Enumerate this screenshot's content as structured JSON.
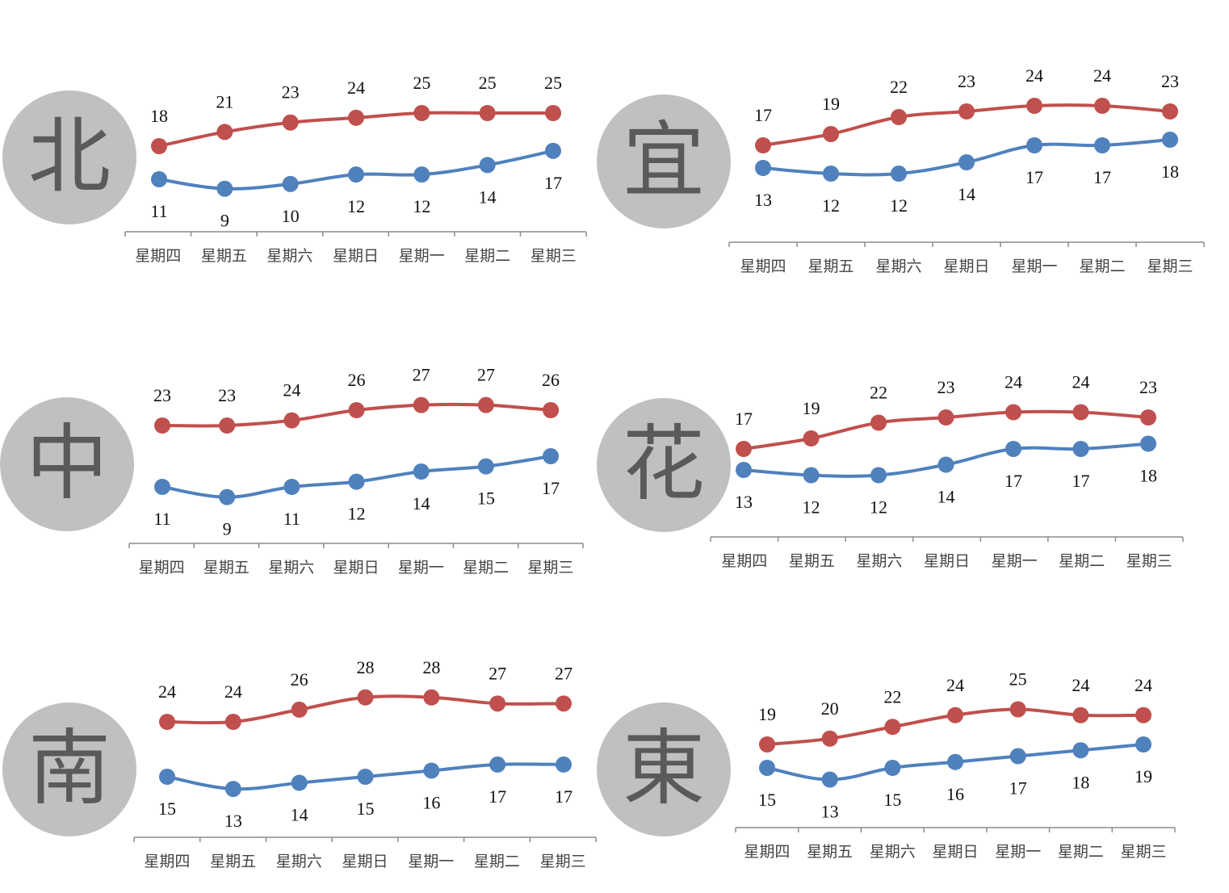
{
  "colors": {
    "high": "#c0504d",
    "low": "#4f81bd",
    "circle": "#c0c0c0",
    "char": "#5a5a5a",
    "axis": "#8c8c8c"
  },
  "chart_data": [
    {
      "type": "line",
      "region": "北",
      "categories": [
        "星期四",
        "星期五",
        "星期六",
        "星期日",
        "星期一",
        "星期二",
        "星期三"
      ],
      "series": [
        {
          "values": [
            18,
            21,
            23,
            24,
            25,
            25,
            25
          ],
          "color": "#c0504d"
        },
        {
          "values": [
            11,
            9,
            10,
            12,
            12,
            14,
            17
          ],
          "color": "#4f81bd"
        }
      ]
    },
    {
      "type": "line",
      "region": "宜",
      "categories": [
        "星期四",
        "星期五",
        "星期六",
        "星期日",
        "星期一",
        "星期二",
        "星期三"
      ],
      "series": [
        {
          "values": [
            17,
            19,
            22,
            23,
            24,
            24,
            23
          ],
          "color": "#c0504d"
        },
        {
          "values": [
            13,
            12,
            12,
            14,
            17,
            17,
            18
          ],
          "color": "#4f81bd"
        }
      ]
    },
    {
      "type": "line",
      "region": "中",
      "categories": [
        "星期四",
        "星期五",
        "星期六",
        "星期日",
        "星期一",
        "星期二",
        "星期三"
      ],
      "series": [
        {
          "values": [
            23,
            23,
            24,
            26,
            27,
            27,
            26
          ],
          "color": "#c0504d"
        },
        {
          "values": [
            11,
            9,
            11,
            12,
            14,
            15,
            17
          ],
          "color": "#4f81bd"
        }
      ]
    },
    {
      "type": "line",
      "region": "花",
      "categories": [
        "星期四",
        "星期五",
        "星期六",
        "星期日",
        "星期一",
        "星期二",
        "星期三"
      ],
      "series": [
        {
          "values": [
            17,
            19,
            22,
            23,
            24,
            24,
            23
          ],
          "color": "#c0504d"
        },
        {
          "values": [
            13,
            12,
            12,
            14,
            17,
            17,
            18
          ],
          "color": "#4f81bd"
        }
      ]
    },
    {
      "type": "line",
      "region": "南",
      "categories": [
        "星期四",
        "星期五",
        "星期六",
        "星期日",
        "星期一",
        "星期二",
        "星期三"
      ],
      "series": [
        {
          "values": [
            24,
            24,
            26,
            28,
            28,
            27,
            27
          ],
          "color": "#c0504d"
        },
        {
          "values": [
            15,
            13,
            14,
            15,
            16,
            17,
            17
          ],
          "color": "#4f81bd"
        }
      ]
    },
    {
      "type": "line",
      "region": "東",
      "categories": [
        "星期四",
        "星期五",
        "星期六",
        "星期日",
        "星期一",
        "星期二",
        "星期三"
      ],
      "series": [
        {
          "values": [
            19,
            20,
            22,
            24,
            25,
            24,
            24
          ],
          "color": "#c0504d"
        },
        {
          "values": [
            15,
            13,
            15,
            16,
            17,
            18,
            19
          ],
          "color": "#4f81bd"
        }
      ]
    }
  ]
}
